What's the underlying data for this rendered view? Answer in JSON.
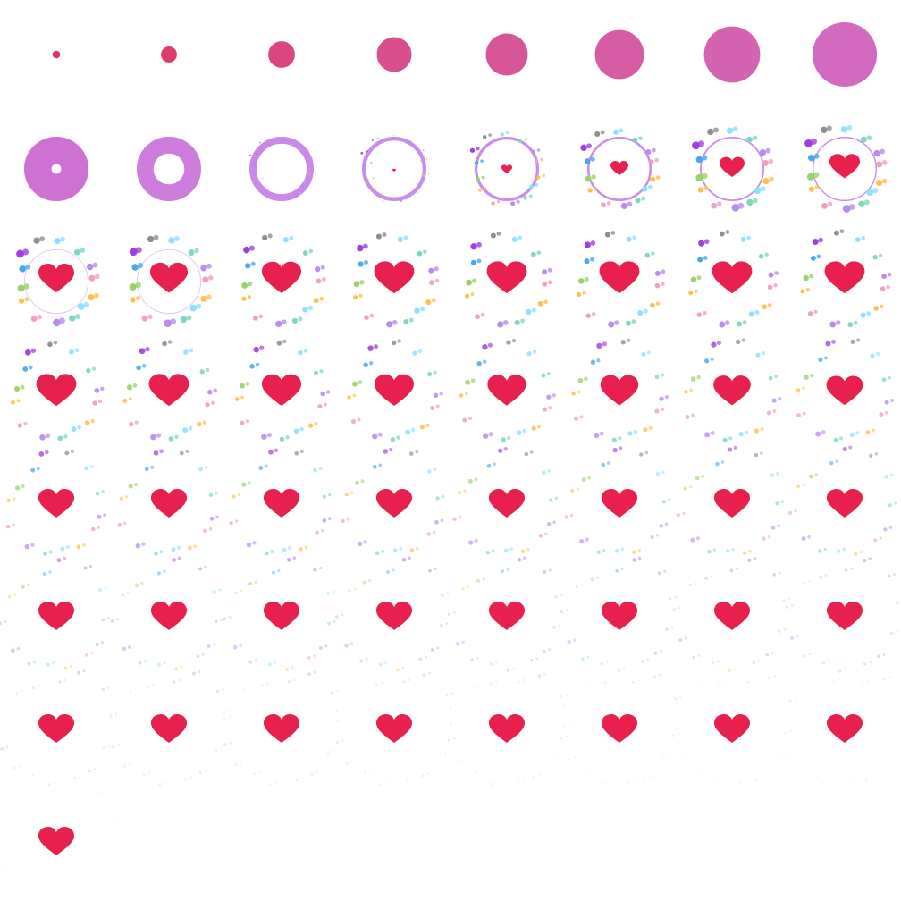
{
  "sheet": {
    "name": "heart-like-animation-sprite-sheet",
    "columns": 8,
    "frame_count": 57,
    "frames": [
      {
        "stage": "burst",
        "progress": 0.04
      },
      {
        "stage": "burst",
        "progress": 0.18
      },
      {
        "stage": "burst",
        "progress": 0.36
      },
      {
        "stage": "burst",
        "progress": 0.5
      },
      {
        "stage": "burst",
        "progress": 0.62
      },
      {
        "stage": "burst",
        "progress": 0.74
      },
      {
        "stage": "burst",
        "progress": 0.86
      },
      {
        "stage": "burst",
        "progress": 1.0
      },
      {
        "stage": "ring",
        "ring_thickness": 0.85,
        "ring_scale": 1.0,
        "heart_scale": 0,
        "particles": 0
      },
      {
        "stage": "ring",
        "ring_thickness": 0.52,
        "ring_scale": 1.0,
        "heart_scale": 0,
        "particles": 0
      },
      {
        "stage": "ring",
        "ring_thickness": 0.22,
        "ring_scale": 1.0,
        "heart_scale": 0,
        "particles": 0.05
      },
      {
        "stage": "ring",
        "ring_thickness": 0.12,
        "ring_scale": 1.0,
        "heart_scale": 0.1,
        "particles": 0.15
      },
      {
        "stage": "ring",
        "ring_thickness": 0.09,
        "ring_scale": 1.0,
        "heart_scale": 0.3,
        "particles": 0.3
      },
      {
        "stage": "ring",
        "ring_thickness": 0.07,
        "ring_scale": 1.0,
        "heart_scale": 0.5,
        "particles": 0.42
      },
      {
        "stage": "ring",
        "ring_thickness": 0.05,
        "ring_scale": 1.0,
        "heart_scale": 0.7,
        "particles": 0.5
      },
      {
        "stage": "ring",
        "ring_thickness": 0.04,
        "ring_scale": 1.0,
        "heart_scale": 0.85,
        "particles": 0.56
      },
      {
        "stage": "ring",
        "ring_thickness": 0.02,
        "ring_scale": 1.0,
        "heart_scale": 1.0,
        "particles": 0.62
      },
      {
        "stage": "ring",
        "ring_thickness": 0.01,
        "ring_scale": 1.0,
        "heart_scale": 1.05,
        "particles": 0.66
      },
      {
        "stage": "confetti",
        "heart_scale": 1.1,
        "particles": 0.7,
        "fade": 1.0
      },
      {
        "stage": "confetti",
        "heart_scale": 1.12,
        "particles": 0.73,
        "fade": 1.0
      },
      {
        "stage": "confetti",
        "heart_scale": 1.12,
        "particles": 0.75,
        "fade": 1.0
      },
      {
        "stage": "confetti",
        "heart_scale": 1.12,
        "particles": 0.77,
        "fade": 1.0
      },
      {
        "stage": "confetti",
        "heart_scale": 1.12,
        "particles": 0.79,
        "fade": 1.0
      },
      {
        "stage": "confetti",
        "heart_scale": 1.12,
        "particles": 0.81,
        "fade": 1.0
      },
      {
        "stage": "confetti",
        "heart_scale": 1.12,
        "particles": 0.86,
        "fade": 0.95
      },
      {
        "stage": "confetti",
        "heart_scale": 1.12,
        "particles": 0.88,
        "fade": 0.93
      },
      {
        "stage": "confetti",
        "heart_scale": 1.1,
        "particles": 0.9,
        "fade": 0.9
      },
      {
        "stage": "confetti",
        "heart_scale": 1.1,
        "particles": 0.92,
        "fade": 0.88
      },
      {
        "stage": "confetti",
        "heart_scale": 1.08,
        "particles": 0.94,
        "fade": 0.85
      },
      {
        "stage": "confetti",
        "heart_scale": 1.06,
        "particles": 0.96,
        "fade": 0.82
      },
      {
        "stage": "confetti",
        "heart_scale": 1.04,
        "particles": 0.98,
        "fade": 0.8
      },
      {
        "stage": "confetti",
        "heart_scale": 1.02,
        "particles": 1.0,
        "fade": 0.78
      },
      {
        "stage": "confetti",
        "heart_scale": 1.0,
        "particles": 1.08,
        "fade": 0.75
      },
      {
        "stage": "confetti",
        "heart_scale": 1.0,
        "particles": 1.1,
        "fade": 0.72
      },
      {
        "stage": "confetti",
        "heart_scale": 1.0,
        "particles": 1.12,
        "fade": 0.7
      },
      {
        "stage": "confetti",
        "heart_scale": 1.0,
        "particles": 1.14,
        "fade": 0.68
      },
      {
        "stage": "confetti",
        "heart_scale": 1.0,
        "particles": 1.16,
        "fade": 0.66
      },
      {
        "stage": "confetti",
        "heart_scale": 1.0,
        "particles": 1.18,
        "fade": 0.64
      },
      {
        "stage": "confetti",
        "heart_scale": 1.0,
        "particles": 1.2,
        "fade": 0.62
      },
      {
        "stage": "confetti",
        "heart_scale": 1.0,
        "particles": 1.22,
        "fade": 0.6
      },
      {
        "stage": "confetti",
        "heart_scale": 1.0,
        "particles": 1.3,
        "fade": 0.5
      },
      {
        "stage": "confetti",
        "heart_scale": 1.0,
        "particles": 1.32,
        "fade": 0.48
      },
      {
        "stage": "confetti",
        "heart_scale": 1.0,
        "particles": 1.34,
        "fade": 0.46
      },
      {
        "stage": "confetti",
        "heart_scale": 1.0,
        "particles": 1.36,
        "fade": 0.44
      },
      {
        "stage": "confetti",
        "heart_scale": 1.0,
        "particles": 1.38,
        "fade": 0.42
      },
      {
        "stage": "confetti",
        "heart_scale": 1.0,
        "particles": 1.4,
        "fade": 0.4
      },
      {
        "stage": "confetti",
        "heart_scale": 1.0,
        "particles": 1.42,
        "fade": 0.38
      },
      {
        "stage": "confetti",
        "heart_scale": 1.0,
        "particles": 1.44,
        "fade": 0.36
      },
      {
        "stage": "confetti",
        "heart_scale": 1.0,
        "particles": 1.5,
        "fade": 0.25
      },
      {
        "stage": "confetti",
        "heart_scale": 1.0,
        "particles": 1.52,
        "fade": 0.23
      },
      {
        "stage": "confetti",
        "heart_scale": 1.0,
        "particles": 1.54,
        "fade": 0.21
      },
      {
        "stage": "confetti",
        "heart_scale": 1.0,
        "particles": 1.56,
        "fade": 0.19
      },
      {
        "stage": "confetti",
        "heart_scale": 1.0,
        "particles": 1.58,
        "fade": 0.17
      },
      {
        "stage": "confetti",
        "heart_scale": 1.0,
        "particles": 1.6,
        "fade": 0.15
      },
      {
        "stage": "confetti",
        "heart_scale": 1.0,
        "particles": 1.62,
        "fade": 0.13
      },
      {
        "stage": "confetti",
        "heart_scale": 1.0,
        "particles": 1.64,
        "fade": 0.11
      },
      {
        "stage": "confetti",
        "heart_scale": 1.0,
        "particles": 1.7,
        "fade": 0.06
      }
    ]
  },
  "colors": {
    "background": "#ffffff",
    "heart": "#e8204e",
    "burst_start": "#e0305a",
    "burst_end": "#d26bc0",
    "ring_start": "#d06ccd",
    "ring_end": "#c890f0",
    "particles": [
      "#8ee0ff",
      "#7fd7c0",
      "#b98cf0",
      "#f0a0c0",
      "#ffc04d",
      "#9ad26a",
      "#4aa8f0",
      "#9f3fe0",
      "#8f8f8f"
    ]
  },
  "icons": {
    "heart": "heart-icon",
    "burst": "burst-circle-icon",
    "ring": "ring-icon",
    "particle": "confetti-dot-icon"
  }
}
